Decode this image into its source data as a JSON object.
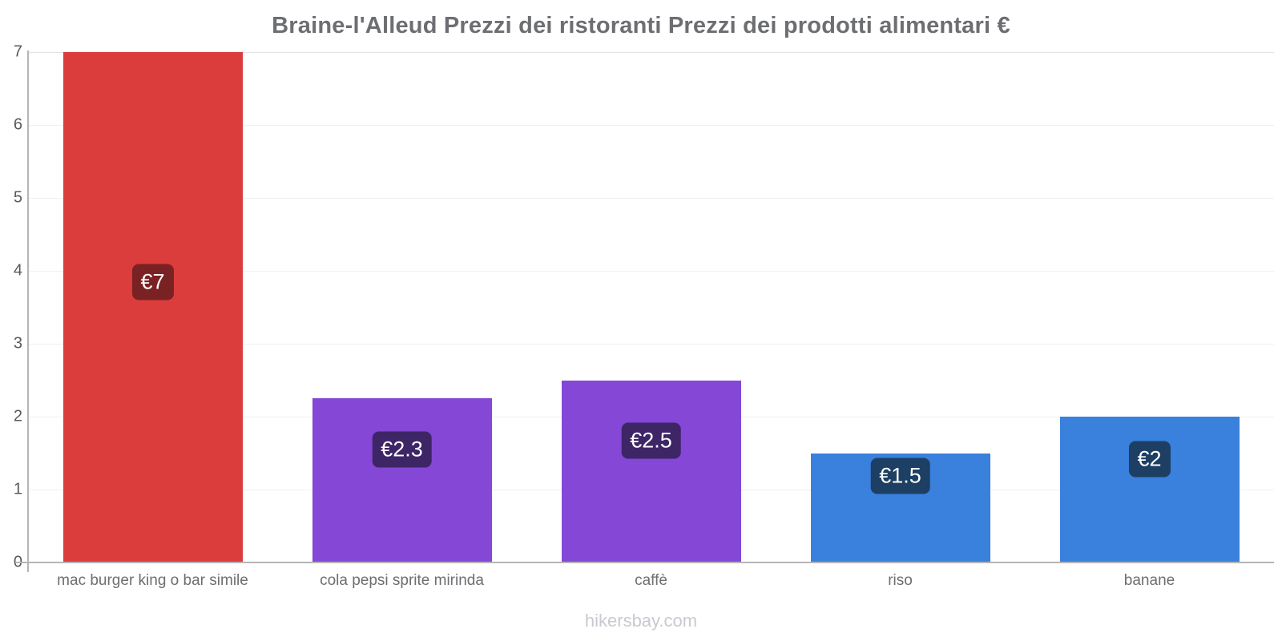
{
  "chart_data": {
    "type": "bar",
    "title": "Braine-l'Alleud Prezzi dei ristoranti Prezzi dei prodotti alimentari €",
    "categories": [
      "mac burger king o bar simile",
      "cola pepsi sprite mirinda",
      "caffè",
      "riso",
      "banane"
    ],
    "values": [
      7,
      2.25,
      2.5,
      1.5,
      2
    ],
    "value_labels": [
      "€7",
      "€2.3",
      "€2.5",
      "€1.5",
      "€2"
    ],
    "bar_colors": [
      "#db3d3d",
      "#8447d6",
      "#8447d6",
      "#3a80dd",
      "#3a80dd"
    ],
    "label_box_colors": [
      "#7a2123",
      "#3e2566",
      "#3e2566",
      "#1d3f63",
      "#1d3f63"
    ],
    "label_offset_pct": [
      45,
      31,
      33,
      21,
      29
    ],
    "xlabel": "",
    "ylabel": "",
    "ylim": [
      0,
      7
    ],
    "yticks": [
      0,
      1,
      2,
      3,
      4,
      5,
      6,
      7
    ],
    "grid": true,
    "legend": "none",
    "footer": "hikersbay.com"
  }
}
